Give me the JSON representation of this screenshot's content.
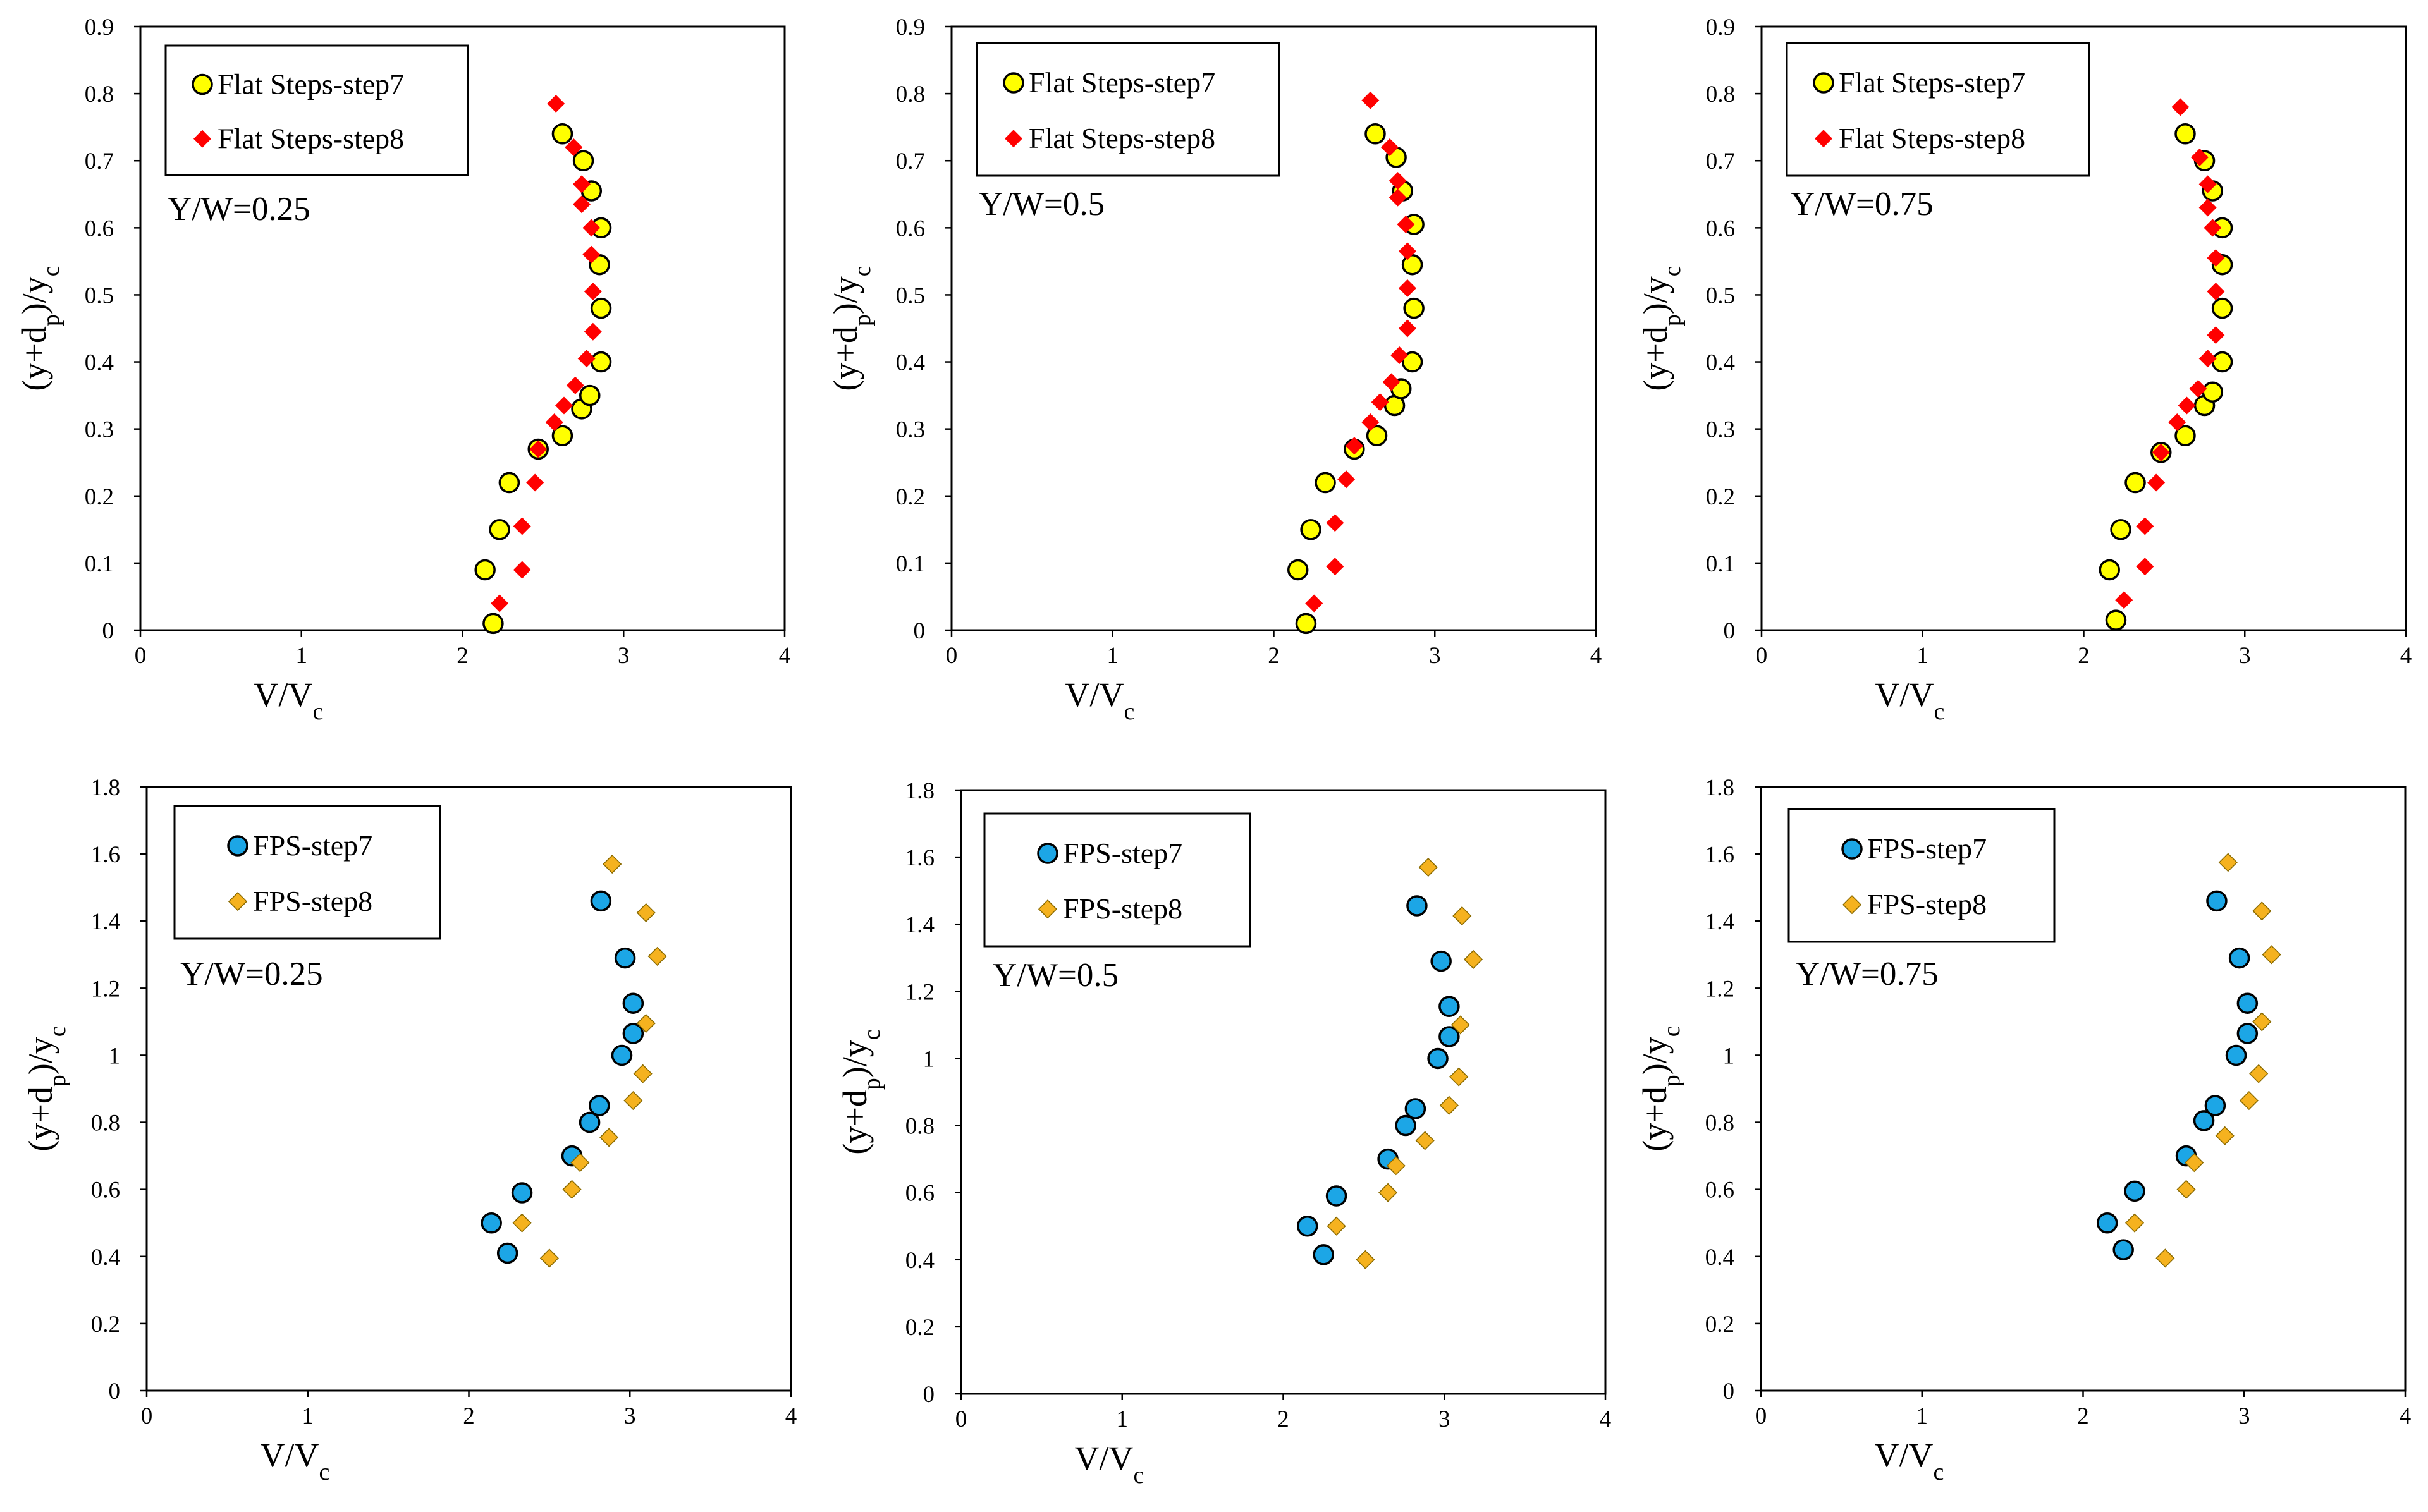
{
  "charts": [
    {
      "type": "scatter",
      "title": "",
      "xlabel": "V/V_c",
      "ylabel": "(y+d_p)/y_c",
      "xlim": [
        0,
        4
      ],
      "ylim": [
        0,
        0.9
      ],
      "xticks": [
        "0",
        "1",
        "2",
        "3",
        "4"
      ],
      "yticks": [
        "0",
        "0.1",
        "0.2",
        "0.3",
        "0.4",
        "0.5",
        "0.6",
        "0.7",
        "0.8",
        "0.9"
      ],
      "annotation": "Y/W=0.25",
      "legend_position": "top-left",
      "series": [
        {
          "name": "Flat Steps-step7",
          "marker": "circle",
          "color": "#ffff00",
          "points": [
            [
              2.19,
              0.01
            ],
            [
              2.14,
              0.09
            ],
            [
              2.23,
              0.15
            ],
            [
              2.29,
              0.22
            ],
            [
              2.47,
              0.27
            ],
            [
              2.62,
              0.29
            ],
            [
              2.74,
              0.33
            ],
            [
              2.79,
              0.35
            ],
            [
              2.86,
              0.4
            ],
            [
              2.86,
              0.48
            ],
            [
              2.85,
              0.545
            ],
            [
              2.86,
              0.6
            ],
            [
              2.8,
              0.655
            ],
            [
              2.75,
              0.7
            ],
            [
              2.62,
              0.74
            ]
          ]
        },
        {
          "name": "Flat Steps-step8",
          "marker": "diamond",
          "color": "#ff0000",
          "points": [
            [
              2.23,
              0.04
            ],
            [
              2.37,
              0.09
            ],
            [
              2.37,
              0.155
            ],
            [
              2.45,
              0.22
            ],
            [
              2.47,
              0.27
            ],
            [
              2.57,
              0.31
            ],
            [
              2.63,
              0.335
            ],
            [
              2.7,
              0.365
            ],
            [
              2.77,
              0.405
            ],
            [
              2.81,
              0.445
            ],
            [
              2.81,
              0.505
            ],
            [
              2.8,
              0.56
            ],
            [
              2.8,
              0.6
            ],
            [
              2.74,
              0.635
            ],
            [
              2.74,
              0.665
            ],
            [
              2.69,
              0.72
            ],
            [
              2.58,
              0.785
            ]
          ]
        }
      ]
    },
    {
      "type": "scatter",
      "title": "",
      "xlabel": "V/V_c",
      "ylabel": "(y+d_p)/y_c",
      "xlim": [
        0,
        4
      ],
      "ylim": [
        0,
        0.9
      ],
      "xticks": [
        "0",
        "1",
        "2",
        "3",
        "4"
      ],
      "yticks": [
        "0",
        "0.1",
        "0.2",
        "0.3",
        "0.4",
        "0.5",
        "0.6",
        "0.7",
        "0.8",
        "0.9"
      ],
      "annotation": "Y/W=0.5",
      "legend_position": "top-left",
      "series": [
        {
          "name": "Flat Steps-step7",
          "marker": "circle",
          "color": "#ffff00",
          "points": [
            [
              2.2,
              0.01
            ],
            [
              2.15,
              0.09
            ],
            [
              2.23,
              0.15
            ],
            [
              2.32,
              0.22
            ],
            [
              2.5,
              0.27
            ],
            [
              2.64,
              0.29
            ],
            [
              2.75,
              0.335
            ],
            [
              2.79,
              0.36
            ],
            [
              2.86,
              0.4
            ],
            [
              2.87,
              0.48
            ],
            [
              2.86,
              0.545
            ],
            [
              2.87,
              0.605
            ],
            [
              2.8,
              0.655
            ],
            [
              2.76,
              0.705
            ],
            [
              2.63,
              0.74
            ]
          ]
        },
        {
          "name": "Flat Steps-step8",
          "marker": "diamond",
          "color": "#ff0000",
          "points": [
            [
              2.25,
              0.04
            ],
            [
              2.38,
              0.095
            ],
            [
              2.38,
              0.16
            ],
            [
              2.45,
              0.225
            ],
            [
              2.5,
              0.275
            ],
            [
              2.6,
              0.31
            ],
            [
              2.66,
              0.34
            ],
            [
              2.73,
              0.37
            ],
            [
              2.78,
              0.41
            ],
            [
              2.83,
              0.45
            ],
            [
              2.83,
              0.51
            ],
            [
              2.83,
              0.565
            ],
            [
              2.82,
              0.605
            ],
            [
              2.77,
              0.645
            ],
            [
              2.77,
              0.67
            ],
            [
              2.72,
              0.72
            ],
            [
              2.6,
              0.79
            ]
          ]
        }
      ]
    },
    {
      "type": "scatter",
      "title": "",
      "xlabel": "V/V_c",
      "ylabel": "(y+d_p)/y_c",
      "xlim": [
        0,
        4
      ],
      "ylim": [
        0,
        0.9
      ],
      "xticks": [
        "0",
        "1",
        "2",
        "3",
        "4"
      ],
      "yticks": [
        "0",
        "0.1",
        "0.2",
        "0.3",
        "0.4",
        "0.5",
        "0.6",
        "0.7",
        "0.8",
        "0.9"
      ],
      "annotation": "Y/W=0.75",
      "legend_position": "top-left",
      "series": [
        {
          "name": "Flat Steps-step7",
          "marker": "circle",
          "color": "#ffff00",
          "points": [
            [
              2.2,
              0.015
            ],
            [
              2.16,
              0.09
            ],
            [
              2.23,
              0.15
            ],
            [
              2.32,
              0.22
            ],
            [
              2.48,
              0.265
            ],
            [
              2.63,
              0.29
            ],
            [
              2.75,
              0.335
            ],
            [
              2.8,
              0.355
            ],
            [
              2.86,
              0.4
            ],
            [
              2.86,
              0.48
            ],
            [
              2.86,
              0.545
            ],
            [
              2.86,
              0.6
            ],
            [
              2.8,
              0.655
            ],
            [
              2.75,
              0.7
            ],
            [
              2.63,
              0.74
            ]
          ]
        },
        {
          "name": "Flat Steps-step8",
          "marker": "diamond",
          "color": "#ff0000",
          "points": [
            [
              2.25,
              0.045
            ],
            [
              2.38,
              0.095
            ],
            [
              2.38,
              0.155
            ],
            [
              2.45,
              0.22
            ],
            [
              2.48,
              0.265
            ],
            [
              2.58,
              0.31
            ],
            [
              2.64,
              0.335
            ],
            [
              2.71,
              0.36
            ],
            [
              2.77,
              0.405
            ],
            [
              2.82,
              0.44
            ],
            [
              2.82,
              0.505
            ],
            [
              2.82,
              0.555
            ],
            [
              2.8,
              0.6
            ],
            [
              2.77,
              0.63
            ],
            [
              2.77,
              0.665
            ],
            [
              2.72,
              0.705
            ],
            [
              2.6,
              0.78
            ]
          ]
        }
      ]
    },
    {
      "type": "scatter",
      "title": "",
      "xlabel": "V/V_c",
      "ylabel": "(y+d_p)/y_c",
      "xlim": [
        0,
        4
      ],
      "ylim": [
        0,
        1.8
      ],
      "xticks": [
        "0",
        "1",
        "2",
        "3",
        "4"
      ],
      "yticks": [
        "0",
        "0.2",
        "0.4",
        "0.6",
        "0.8",
        "1",
        "1.2",
        "1.4",
        "1.6",
        "1.8"
      ],
      "annotation": "Y/W=0.25",
      "legend_position": "top-left",
      "series": [
        {
          "name": "FPS-step7",
          "marker": "circle",
          "color": "#1ca6e6",
          "points": [
            [
              2.24,
              0.41
            ],
            [
              2.14,
              0.5
            ],
            [
              2.33,
              0.59
            ],
            [
              2.64,
              0.7
            ],
            [
              2.75,
              0.8
            ],
            [
              2.81,
              0.85
            ],
            [
              2.95,
              1.0
            ],
            [
              3.02,
              1.065
            ],
            [
              3.02,
              1.155
            ],
            [
              2.97,
              1.29
            ],
            [
              2.82,
              1.46
            ]
          ]
        },
        {
          "name": "FPS-step8",
          "marker": "diamond",
          "color": "#f5b21f",
          "points": [
            [
              2.5,
              0.395
            ],
            [
              2.33,
              0.5
            ],
            [
              2.64,
              0.6
            ],
            [
              2.69,
              0.68
            ],
            [
              2.87,
              0.755
            ],
            [
              3.02,
              0.865
            ],
            [
              3.08,
              0.945
            ],
            [
              3.1,
              1.095
            ],
            [
              3.17,
              1.295
            ],
            [
              3.1,
              1.425
            ],
            [
              2.89,
              1.57
            ]
          ]
        }
      ]
    },
    {
      "type": "scatter",
      "title": "",
      "xlabel": "V/V_c",
      "ylabel": "(y+d_p)/y_c",
      "xlim": [
        0,
        4
      ],
      "ylim": [
        0,
        1.8
      ],
      "xticks": [
        "0",
        "1",
        "2",
        "3",
        "4"
      ],
      "yticks": [
        "0",
        "0.2",
        "0.4",
        "0.6",
        "0.8",
        "1",
        "1.2",
        "1.4",
        "1.6",
        "1.8"
      ],
      "annotation": "Y/W=0.5",
      "legend_position": "top-left",
      "series": [
        {
          "name": "FPS-step7",
          "marker": "circle",
          "color": "#1ca6e6",
          "points": [
            [
              2.25,
              0.415
            ],
            [
              2.15,
              0.5
            ],
            [
              2.33,
              0.59
            ],
            [
              2.65,
              0.7
            ],
            [
              2.76,
              0.8
            ],
            [
              2.82,
              0.85
            ],
            [
              2.96,
              1.0
            ],
            [
              3.03,
              1.065
            ],
            [
              3.03,
              1.155
            ],
            [
              2.98,
              1.29
            ],
            [
              2.83,
              1.455
            ]
          ]
        },
        {
          "name": "FPS-step8",
          "marker": "diamond",
          "color": "#f5b21f",
          "points": [
            [
              2.51,
              0.4
            ],
            [
              2.33,
              0.5
            ],
            [
              2.65,
              0.6
            ],
            [
              2.7,
              0.68
            ],
            [
              2.88,
              0.755
            ],
            [
              3.03,
              0.86
            ],
            [
              3.09,
              0.945
            ],
            [
              3.1,
              1.1
            ],
            [
              3.18,
              1.295
            ],
            [
              3.11,
              1.425
            ],
            [
              2.9,
              1.57
            ]
          ]
        }
      ]
    },
    {
      "type": "scatter",
      "title": "",
      "xlabel": "V/V_c",
      "ylabel": "(y+d_p)/y_c",
      "xlim": [
        0,
        4
      ],
      "ylim": [
        0,
        1.8
      ],
      "xticks": [
        "0",
        "1",
        "2",
        "3",
        "4"
      ],
      "yticks": [
        "0",
        "0.2",
        "0.4",
        "0.6",
        "0.8",
        "1",
        "1.2",
        "1.4",
        "1.6",
        "1.8"
      ],
      "annotation": "Y/W=0.75",
      "legend_position": "top-left",
      "series": [
        {
          "name": "FPS-step7",
          "marker": "circle",
          "color": "#1ca6e6",
          "points": [
            [
              2.25,
              0.42
            ],
            [
              2.15,
              0.5
            ],
            [
              2.32,
              0.595
            ],
            [
              2.64,
              0.7
            ],
            [
              2.75,
              0.805
            ],
            [
              2.82,
              0.85
            ],
            [
              2.95,
              1.0
            ],
            [
              3.02,
              1.065
            ],
            [
              3.02,
              1.155
            ],
            [
              2.97,
              1.29
            ],
            [
              2.83,
              1.46
            ]
          ]
        },
        {
          "name": "FPS-step8",
          "marker": "diamond",
          "color": "#f5b21f",
          "points": [
            [
              2.51,
              0.395
            ],
            [
              2.32,
              0.5
            ],
            [
              2.64,
              0.6
            ],
            [
              2.69,
              0.68
            ],
            [
              2.88,
              0.76
            ],
            [
              3.03,
              0.865
            ],
            [
              3.09,
              0.945
            ],
            [
              3.11,
              1.1
            ],
            [
              3.17,
              1.3
            ],
            [
              3.11,
              1.43
            ],
            [
              2.9,
              1.575
            ]
          ]
        }
      ]
    }
  ]
}
